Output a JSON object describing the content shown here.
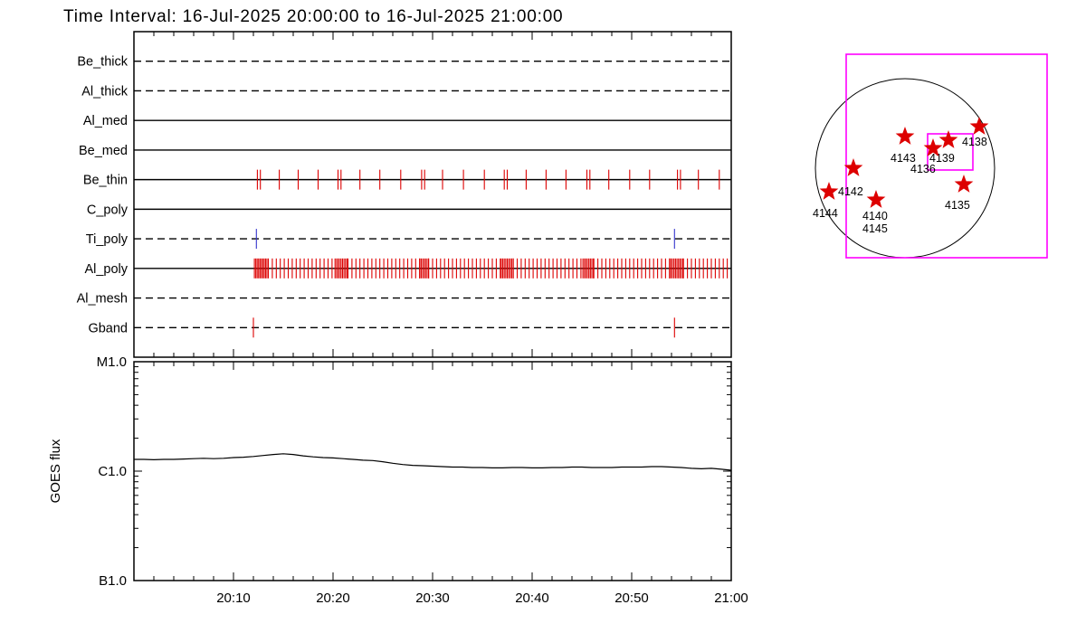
{
  "title": "Time Interval: 16-Jul-2025 20:00:00 to 16-Jul-2025 21:00:00",
  "colors": {
    "red": "#dd0000",
    "blue": "#3333cc",
    "magenta": "#ff00ff",
    "axis": "#000000",
    "background": "#ffffff"
  },
  "chart_data": [
    {
      "type": "timeline",
      "x_axis": {
        "range_minutes": [
          0,
          60
        ],
        "tick_minutes": [
          10,
          20,
          30,
          40,
          50,
          60
        ],
        "tick_labels": [
          "20:10",
          "20:20",
          "20:30",
          "20:40",
          "20:50",
          "21:00"
        ],
        "minor_step_minutes": 2
      },
      "rows": [
        {
          "label": "Be_thick",
          "line": "dashed",
          "ticks": []
        },
        {
          "label": "Al_thick",
          "line": "dashed",
          "ticks": []
        },
        {
          "label": "Al_med",
          "line": "solid",
          "ticks": []
        },
        {
          "label": "Be_med",
          "line": "solid",
          "ticks": []
        },
        {
          "label": "Be_thin",
          "line": "solid",
          "tick_color": "red",
          "ticks": [
            12.4,
            12.7,
            14.6,
            16.5,
            18.5,
            20.5,
            20.8,
            22.7,
            24.7,
            26.8,
            28.9,
            29.2,
            31.0,
            33.1,
            35.2,
            37.2,
            37.5,
            39.4,
            41.4,
            43.4,
            45.5,
            45.8,
            47.7,
            49.8,
            51.8,
            54.6,
            54.9,
            56.7,
            58.8
          ]
        },
        {
          "label": "C_poly",
          "line": "solid",
          "ticks": []
        },
        {
          "label": "Ti_poly",
          "line": "dashed",
          "tick_color": "blue",
          "ticks": [
            12.3,
            54.3
          ]
        },
        {
          "label": "Al_poly",
          "line": "solid",
          "tick_color": "red",
          "ticks": [],
          "tick_ranges": [
            [
              12.1,
              13.5,
              0.14
            ],
            [
              13.5,
              20.2,
              0.4
            ],
            [
              20.2,
              21.5,
              0.15
            ],
            [
              21.5,
              28.7,
              0.4
            ],
            [
              28.7,
              29.6,
              0.15
            ],
            [
              29.6,
              36.9,
              0.4
            ],
            [
              36.9,
              38.1,
              0.15
            ],
            [
              38.1,
              45.1,
              0.4
            ],
            [
              45.1,
              46.2,
              0.15
            ],
            [
              46.2,
              53.8,
              0.4
            ],
            [
              53.8,
              55.2,
              0.15
            ],
            [
              55.2,
              59.9,
              0.4
            ]
          ]
        },
        {
          "label": "Al_mesh",
          "line": "dashed",
          "ticks": []
        },
        {
          "label": "Gband",
          "line": "dashed",
          "tick_color": "red",
          "ticks": [
            12.0,
            54.3
          ]
        }
      ]
    },
    {
      "type": "line",
      "ylabel": "GOES flux",
      "y_ticks": [
        {
          "label": "M1.0",
          "value_wm2": 1e-05
        },
        {
          "label": "C1.0",
          "value_wm2": 1e-06
        },
        {
          "label": "B1.0",
          "value_wm2": 1e-07
        }
      ],
      "x_start_minute": 0,
      "x_step_minutes": 1,
      "flux_1e6_wm2": [
        1.28,
        1.28,
        1.27,
        1.28,
        1.28,
        1.29,
        1.3,
        1.31,
        1.3,
        1.31,
        1.33,
        1.34,
        1.36,
        1.39,
        1.42,
        1.44,
        1.42,
        1.38,
        1.35,
        1.33,
        1.32,
        1.3,
        1.28,
        1.26,
        1.25,
        1.22,
        1.18,
        1.15,
        1.13,
        1.12,
        1.11,
        1.1,
        1.09,
        1.09,
        1.08,
        1.08,
        1.07,
        1.07,
        1.08,
        1.08,
        1.07,
        1.07,
        1.08,
        1.08,
        1.09,
        1.09,
        1.08,
        1.08,
        1.08,
        1.09,
        1.09,
        1.09,
        1.1,
        1.1,
        1.09,
        1.08,
        1.06,
        1.05,
        1.06,
        1.04,
        1.02
      ]
    },
    {
      "type": "map",
      "disk": {
        "cx": 1000,
        "cy": 186,
        "r": 99
      },
      "fov_rects": [
        [
          935,
          60,
          222,
          225
        ],
        [
          1025,
          148,
          50,
          40
        ]
      ],
      "regions": [
        {
          "label": "4138",
          "star": [
            1082,
            140
          ],
          "label_pos": [
            1063,
            161
          ]
        },
        {
          "label": "4143",
          "star": [
            1000,
            151
          ],
          "label_pos": [
            984,
            179
          ]
        },
        {
          "label": "4139",
          "star": [
            1048,
            155
          ],
          "label_pos": [
            1027,
            179
          ]
        },
        {
          "label": "4136",
          "star": [
            1031,
            164
          ],
          "label_pos": [
            1006,
            191
          ]
        },
        {
          "label": "4142",
          "star": [
            943,
            186
          ],
          "label_pos": [
            926,
            216
          ]
        },
        {
          "label": "4144",
          "star": [
            916,
            212
          ],
          "label_pos": [
            898,
            240
          ]
        },
        {
          "label": "4140",
          "star": [
            968,
            221
          ],
          "label_pos": [
            953,
            243
          ]
        },
        {
          "label": "4145",
          "star": null,
          "label_pos": [
            953,
            257
          ]
        },
        {
          "label": "4135",
          "star": [
            1065,
            204
          ],
          "label_pos": [
            1044,
            231
          ]
        }
      ]
    }
  ]
}
